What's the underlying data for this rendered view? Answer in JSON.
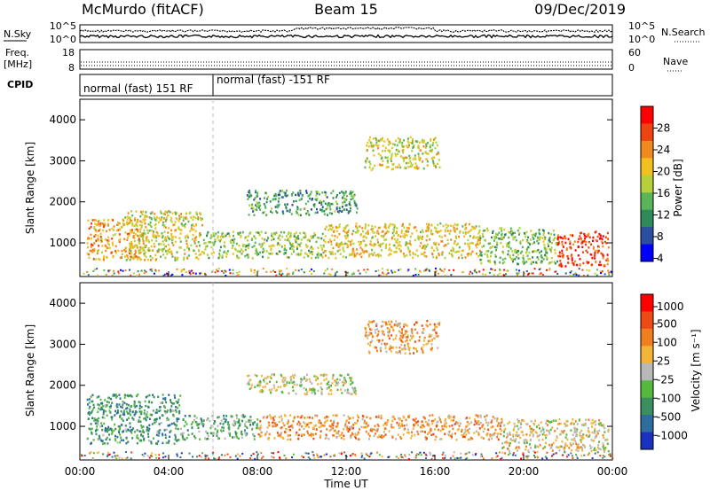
{
  "header": {
    "station": "McMurdo (fitACF)",
    "beam": "Beam 15",
    "date": "09/Dec/2019"
  },
  "noise_panel": {
    "left_label": "N.Sky",
    "right_label": "N.Search",
    "left_ticks": [
      "10^5",
      "10^0"
    ],
    "right_ticks": [
      "10^5",
      "10^0"
    ]
  },
  "freq_panel": {
    "left_label_1": "Freq.",
    "left_label_2": "[MHz]",
    "left_ticks": [
      "18",
      "8"
    ],
    "right_label": "Nave",
    "right_ticks": [
      "60",
      "0"
    ]
  },
  "cpid_panel": {
    "label": "CPID",
    "segments": [
      {
        "label": "normal (fast) 151 RF",
        "start_hour": 0,
        "end_hour": 6
      },
      {
        "label": "normal (fast) -151 RF",
        "start_hour": 6,
        "end_hour": 24
      }
    ]
  },
  "x_axis": {
    "label": "Time UT",
    "ticks": [
      "00:00",
      "04:00",
      "08:00",
      "12:00",
      "16:00",
      "20:00",
      "00:00"
    ]
  },
  "power_panel": {
    "ylabel": "Slant Range [km]",
    "yticks": [
      "4000",
      "3000",
      "2000",
      "1000"
    ],
    "colorbar_label": "Power [dB]",
    "colorbar_ticks": [
      "28",
      "24",
      "20",
      "16",
      "12",
      "8",
      "4"
    ],
    "colors": [
      "#0000ff",
      "#2b4f9e",
      "#2e8b57",
      "#5ab55a",
      "#b5d13a",
      "#f0c020",
      "#f08a1e",
      "#ee4411",
      "#ff0000"
    ]
  },
  "velocity_panel": {
    "ylabel": "Slant Range [km]",
    "yticks": [
      "4000",
      "3000",
      "2000",
      "1000"
    ],
    "colorbar_label": "Velocity [m s⁻¹]",
    "colorbar_ticks": [
      "1000",
      "500",
      "100",
      "25",
      "-25",
      "-100",
      "-500",
      "-1000"
    ],
    "colors": [
      "#1a30c0",
      "#2d6e9e",
      "#3a8f5f",
      "#55b940",
      "#b8b8b8",
      "#f2b53a",
      "#f07f20",
      "#ee4a16",
      "#ff0000"
    ]
  },
  "chart_data": {
    "type": "heatmap",
    "x_range_hours": [
      0,
      24
    ],
    "y_range_km": [
      180,
      4500
    ],
    "power_bands": [
      {
        "t0": 0.3,
        "t1": 3.0,
        "r0": 600,
        "r1": 1600,
        "level": 0.7
      },
      {
        "t0": 2.0,
        "t1": 5.5,
        "r0": 600,
        "r1": 1800,
        "level": 0.55
      },
      {
        "t0": 5.5,
        "t1": 11.0,
        "r0": 650,
        "r1": 1300,
        "level": 0.45
      },
      {
        "t0": 7.5,
        "t1": 12.5,
        "r0": 1700,
        "r1": 2300,
        "level": 0.3
      },
      {
        "t0": 11.0,
        "t1": 18.0,
        "r0": 650,
        "r1": 1500,
        "level": 0.6
      },
      {
        "t0": 12.8,
        "t1": 16.2,
        "r0": 2800,
        "r1": 3600,
        "level": 0.55
      },
      {
        "t0": 18.0,
        "t1": 21.5,
        "r0": 500,
        "r1": 1400,
        "level": 0.4
      },
      {
        "t0": 21.5,
        "t1": 23.8,
        "r0": 450,
        "r1": 1300,
        "level": 0.9
      }
    ],
    "velocity_bands": [
      {
        "t0": 0.3,
        "t1": 4.5,
        "r0": 600,
        "r1": 1800,
        "level": 0.27
      },
      {
        "t0": 4.5,
        "t1": 8.0,
        "r0": 700,
        "r1": 1300,
        "level": 0.35
      },
      {
        "t0": 7.5,
        "t1": 12.5,
        "r0": 1800,
        "r1": 2300,
        "level": 0.5
      },
      {
        "t0": 8.0,
        "t1": 19.0,
        "r0": 700,
        "r1": 1300,
        "level": 0.68
      },
      {
        "t0": 12.8,
        "t1": 16.2,
        "r0": 2800,
        "r1": 3600,
        "level": 0.68
      },
      {
        "t0": 19.0,
        "t1": 23.8,
        "r0": 400,
        "r1": 1200,
        "level": 0.55
      }
    ]
  }
}
